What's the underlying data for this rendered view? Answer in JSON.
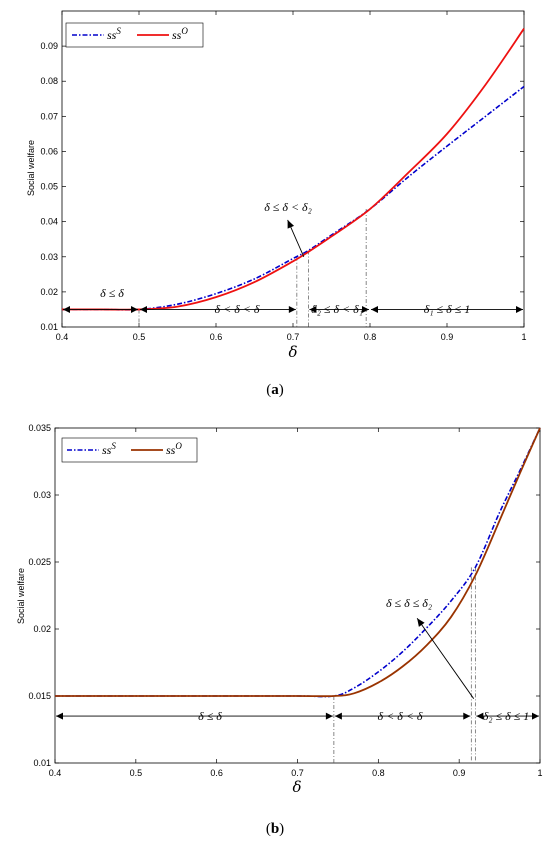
{
  "chart_data": [
    {
      "type": "line",
      "panel": "a",
      "caption_pre": "(",
      "caption_letter": "a",
      "caption_post": ")",
      "xlabel": "δ",
      "ylabel": "Social welfare",
      "xlim": [
        0.4,
        1.0
      ],
      "ylim": [
        0.01,
        0.1
      ],
      "xticks": [
        "0.4",
        "0.5",
        "0.6",
        "0.7",
        "0.8",
        "0.9",
        "1"
      ],
      "yticks": [
        "0.01",
        "0.02",
        "0.03",
        "0.04",
        "0.05",
        "0.06",
        "0.07",
        "0.08",
        "0.09"
      ],
      "legend": "top-left",
      "series": [
        {
          "name": "ss",
          "sup": "S",
          "color": "#0000cc",
          "style": "dashdot",
          "x": [
            0.4,
            0.45,
            0.5,
            0.55,
            0.6,
            0.65,
            0.7,
            0.72,
            0.75,
            0.8,
            0.85,
            0.9,
            0.95,
            1.0
          ],
          "y": [
            0.015,
            0.015,
            0.015,
            0.0165,
            0.0195,
            0.0237,
            0.0295,
            0.0318,
            0.0362,
            0.0436,
            0.0528,
            0.0615,
            0.07,
            0.0785
          ]
        },
        {
          "name": "ss",
          "sup": "O",
          "color": "#ee1111",
          "style": "solid",
          "x": [
            0.4,
            0.45,
            0.5,
            0.55,
            0.6,
            0.65,
            0.7,
            0.72,
            0.75,
            0.8,
            0.85,
            0.9,
            0.95,
            1.0
          ],
          "y": [
            0.015,
            0.015,
            0.015,
            0.0158,
            0.0185,
            0.0228,
            0.0287,
            0.0314,
            0.0358,
            0.0436,
            0.054,
            0.065,
            0.079,
            0.095
          ]
        }
      ],
      "vlines": [
        {
          "x": 0.5,
          "y": 0.015
        },
        {
          "x": 0.705,
          "y": 0.03
        },
        {
          "x": 0.72,
          "y": 0.0318
        },
        {
          "x": 0.795,
          "y": 0.0436
        }
      ],
      "annotations": [
        {
          "text": "δ ≤ δ",
          "x": 0.452,
          "y": 0.0185
        },
        {
          "text": "δ < δ < δ",
          "x": 0.605,
          "y": 0.0132
        },
        {
          "text": "δ₂ ≤ δ < δ₁",
          "x": 0.757,
          "y": 0.0135
        },
        {
          "text": "δ₁ ≤ δ ≤ 1",
          "x": 0.9,
          "y": 0.0135
        },
        {
          "text": "δ ≤ δ < δ₂",
          "x": 0.693,
          "y": 0.0415
        }
      ],
      "ranges": [
        [
          0.4,
          0.5
        ],
        [
          0.5,
          0.705
        ],
        [
          0.72,
          0.8
        ],
        [
          0.8,
          1.0
        ]
      ]
    },
    {
      "type": "line",
      "panel": "b",
      "caption_pre": "(",
      "caption_letter": "b",
      "caption_post": ")",
      "xlabel": "δ",
      "ylabel": "Social welfare",
      "xlim": [
        0.4,
        1.0
      ],
      "ylim": [
        0.01,
        0.035
      ],
      "xticks": [
        "0.4",
        "0.5",
        "0.6",
        "0.7",
        "0.8",
        "0.9",
        "1"
      ],
      "yticks": [
        "0.01",
        "0.015",
        "0.02",
        "0.025",
        "0.03",
        "0.035"
      ],
      "legend": "top-left",
      "series": [
        {
          "name": "ss",
          "sup": "S",
          "color": "#0000cc",
          "style": "dashdot",
          "x": [
            0.4,
            0.5,
            0.6,
            0.7,
            0.745,
            0.77,
            0.8,
            0.83,
            0.86,
            0.89,
            0.92,
            0.95,
            0.975,
            1.0
          ],
          "y": [
            0.015,
            0.015,
            0.015,
            0.015,
            0.015,
            0.0156,
            0.0168,
            0.0183,
            0.0201,
            0.0221,
            0.0246,
            0.0287,
            0.0318,
            0.035
          ]
        },
        {
          "name": "ss",
          "sup": "O",
          "color": "#993300",
          "style": "solid",
          "x": [
            0.4,
            0.5,
            0.6,
            0.7,
            0.745,
            0.77,
            0.8,
            0.83,
            0.86,
            0.89,
            0.92,
            0.95,
            0.975,
            1.0
          ],
          "y": [
            0.015,
            0.015,
            0.015,
            0.015,
            0.015,
            0.0152,
            0.016,
            0.0172,
            0.0188,
            0.0209,
            0.024,
            0.0281,
            0.0316,
            0.035
          ]
        }
      ],
      "vlines": [
        {
          "x": 0.745,
          "y": 0.015
        },
        {
          "x": 0.915,
          "y": 0.0246
        },
        {
          "x": 0.92,
          "y": 0.0246
        }
      ],
      "annotations": [
        {
          "text": "δ ≤ δ",
          "x": 0.59,
          "y": 0.0132
        },
        {
          "text": "δ < δ < δ",
          "x": 0.828,
          "y": 0.0132
        },
        {
          "text": "δ₂ ≤ δ ≤ 1",
          "x": 0.963,
          "y": 0.0132
        },
        {
          "text": "δ ≤ δ ≤ δ₂",
          "x": 0.848,
          "y": 0.0215
        }
      ],
      "ranges": [
        [
          0.4,
          0.745
        ],
        [
          0.745,
          0.915
        ],
        [
          0.92,
          1.0
        ]
      ]
    }
  ]
}
